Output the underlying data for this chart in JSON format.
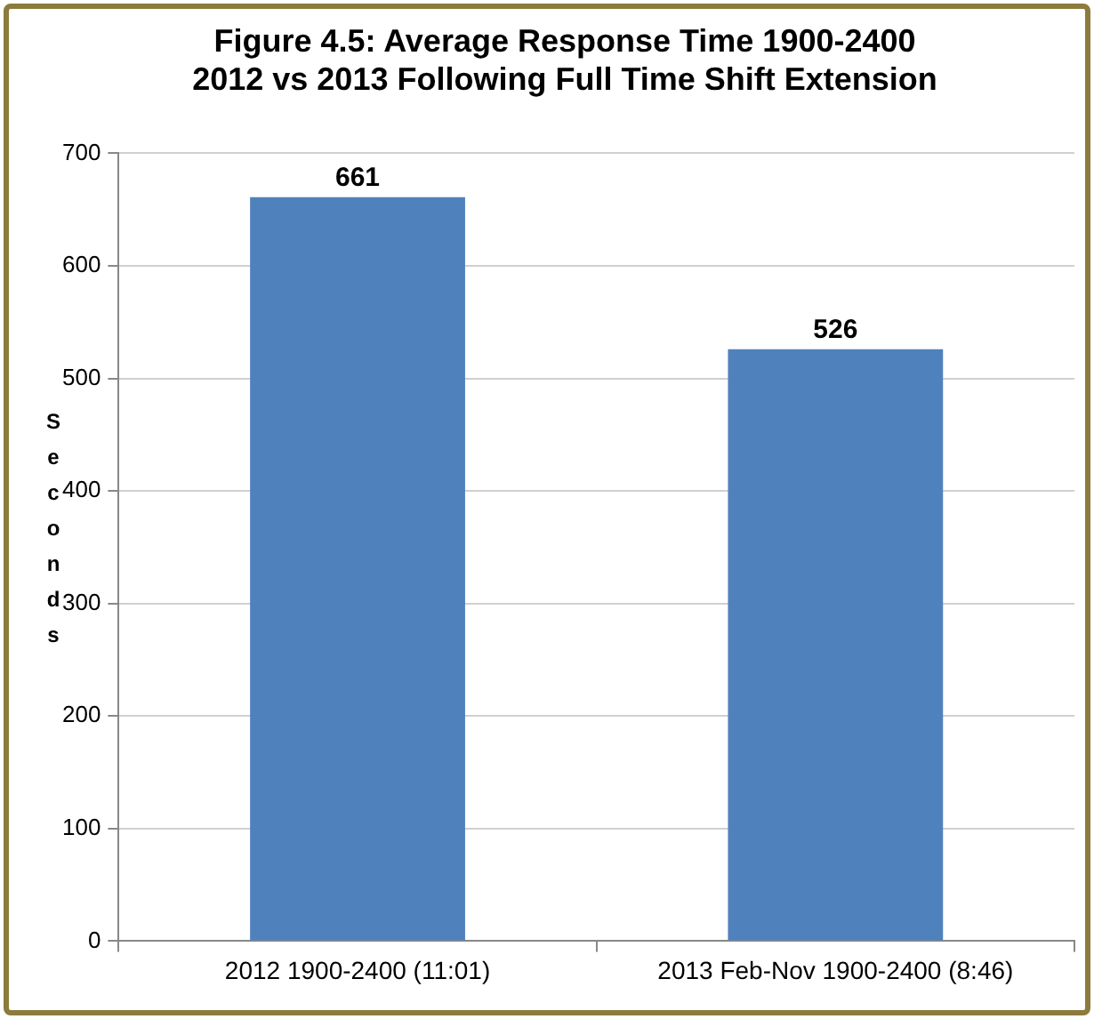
{
  "chart_data": {
    "type": "bar",
    "title": "Figure 4.5: Average Response Time 1900-2400\n2012 vs 2013 Following Full Time Shift Extension",
    "ylabel": "Seconds",
    "categories": [
      "2012 1900-2400 (11:01)",
      "2013 Feb-Nov 1900-2400 (8:46)"
    ],
    "values": [
      661,
      526
    ],
    "color": "#4f81bd",
    "ylim": [
      0,
      700
    ],
    "yticks": [
      0,
      100,
      200,
      300,
      400,
      500,
      600,
      700
    ],
    "grid": "y",
    "legend": false,
    "data_labels": true
  }
}
